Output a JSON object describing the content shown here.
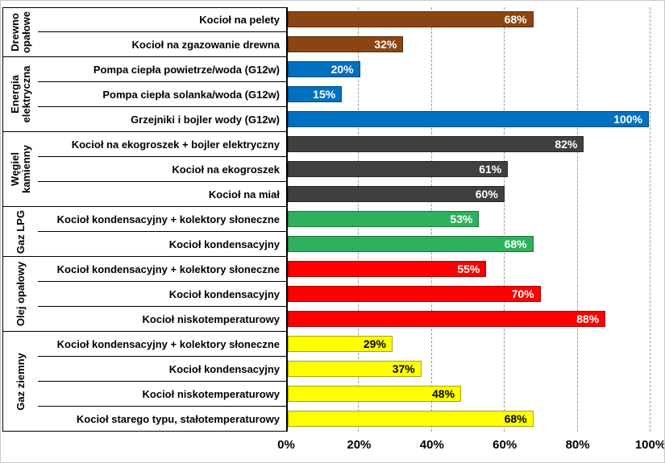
{
  "chart_data": {
    "type": "bar",
    "orientation": "horizontal",
    "title": "",
    "xlabel": "",
    "ylabel": "",
    "xlim": [
      0,
      100
    ],
    "x_ticks": [
      "0%",
      "20%",
      "40%",
      "60%",
      "80%",
      "100%"
    ],
    "grid": "vertical-dashed",
    "value_suffix": "%",
    "colors": {
      "axis_line": "#000000",
      "gridline": "#9a9a9a",
      "row_separator": "#000000"
    },
    "groups": [
      {
        "name": "Drewno opałowe",
        "bar_color": "#8b4513",
        "value_label_color": "#ffffff",
        "items": [
          {
            "label": "Kocioł na pelety",
            "value": 68,
            "value_label": "68%"
          },
          {
            "label": "Kocioł na zgazowanie drewna",
            "value": 32,
            "value_label": "32%"
          }
        ]
      },
      {
        "name": "Energia elektryczna",
        "bar_color": "#0070c0",
        "value_label_color": "#ffffff",
        "items": [
          {
            "label": "Pompa ciepła powietrze/woda (G12w)",
            "value": 20,
            "value_label": "20%"
          },
          {
            "label": "Pompa ciepła solanka/woda (G12w)",
            "value": 15,
            "value_label": "15%"
          },
          {
            "label": "Grzejniki i bojler wody (G12w)",
            "value": 100,
            "value_label": "100%"
          }
        ]
      },
      {
        "name": "Węgiel kamienny",
        "bar_color": "#404040",
        "value_label_color": "#ffffff",
        "items": [
          {
            "label": "Kocioł na ekogroszek + bojler elektryczny",
            "value": 82,
            "value_label": "82%"
          },
          {
            "label": "Kocioł na ekogroszek",
            "value": 61,
            "value_label": "61%"
          },
          {
            "label": "Kocioł na miał",
            "value": 60,
            "value_label": "60%"
          }
        ]
      },
      {
        "name": "Gaz LPG",
        "bar_color": "#2eb15c",
        "value_label_color": "#ffffff",
        "items": [
          {
            "label": "Kocioł kondensacyjny + kolektory słoneczne",
            "value": 53,
            "value_label": "53%"
          },
          {
            "label": "Kocioł kondensacyjny",
            "value": 68,
            "value_label": "68%"
          }
        ]
      },
      {
        "name": "Olej opałowy",
        "bar_color": "#ff0000",
        "value_label_color": "#ffffff",
        "items": [
          {
            "label": "Kocioł kondensacyjny + kolektory słoneczne",
            "value": 55,
            "value_label": "55%"
          },
          {
            "label": "Kocioł kondensacyjny",
            "value": 70,
            "value_label": "70%"
          },
          {
            "label": "Kocioł niskotemperaturowy",
            "value": 88,
            "value_label": "88%"
          }
        ]
      },
      {
        "name": "Gaz ziemny",
        "bar_color": "#ffff00",
        "value_label_color": "#000000",
        "items": [
          {
            "label": "Kocioł kondensacyjny + kolektory słoneczne",
            "value": 29,
            "value_label": "29%"
          },
          {
            "label": "Kocioł kondensacyjny",
            "value": 37,
            "value_label": "37%"
          },
          {
            "label": "Kocioł niskotemperaturowy",
            "value": 48,
            "value_label": "48%"
          },
          {
            "label": "Kocioł starego typu, stałotemperaturowy",
            "value": 68,
            "value_label": "68%"
          }
        ]
      }
    ]
  }
}
